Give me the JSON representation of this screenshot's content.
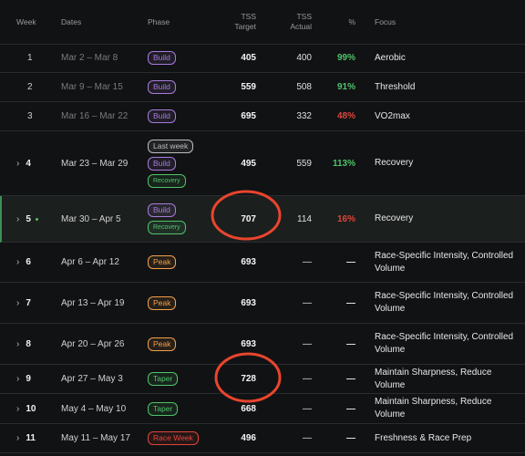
{
  "table": {
    "header": [
      "Week",
      "Dates",
      "Phase",
      "TSS Target",
      "TSS Actual",
      "%",
      "Focus"
    ],
    "rows": [
      {
        "week": "1",
        "dates": "Mar 2 – Mar 8",
        "phases": [
          {
            "label": "Build",
            "color": "#a77bdc"
          }
        ],
        "target": "405",
        "actual": "400",
        "pct": "99%",
        "pct_color": "#4fc36a",
        "focus": "Aerobic",
        "past": true
      },
      {
        "week": "2",
        "dates": "Mar 9 – Mar 15",
        "phases": [
          {
            "label": "Build",
            "color": "#a77bdc"
          }
        ],
        "target": "559",
        "actual": "508",
        "pct": "91%",
        "pct_color": "#4fc36a",
        "focus": "Threshold",
        "past": true
      },
      {
        "week": "3",
        "dates": "Mar 16 – Mar 22",
        "phases": [
          {
            "label": "Build",
            "color": "#a77bdc"
          }
        ],
        "target": "695",
        "actual": "332",
        "pct": "48%",
        "pct_color": "#e0453a",
        "focus": "VO2max",
        "past": true
      },
      {
        "week": "4",
        "dates": "Mar 23 – Mar 29",
        "phases": [
          {
            "label": "Last week",
            "color": "#bdbdbd"
          },
          {
            "label": "Build",
            "color": "#a77bdc"
          },
          {
            "label": "Recovery",
            "color": "#4fc36a"
          }
        ],
        "target": "495",
        "actual": "559",
        "pct": "113%",
        "pct_color": "#4fc36a",
        "focus": "Recovery",
        "expandable": true
      },
      {
        "week": "5",
        "dates": "Mar 30 – Apr 5",
        "phases": [
          {
            "label": "Build",
            "color": "#a77bdc"
          },
          {
            "label": "Recovery",
            "color": "#4fc36a"
          }
        ],
        "target": "707",
        "actual": "114",
        "pct": "16%",
        "pct_color": "#e0453a",
        "focus": "Recovery",
        "expandable": true,
        "current": true
      },
      {
        "week": "6",
        "dates": "Apr 6 – Apr 12",
        "phases": [
          {
            "label": "Peak",
            "color": "#f0a04b"
          }
        ],
        "target": "693",
        "actual": "—",
        "pct": "—",
        "focus": "Race-Specific Intensity, Controlled Volume",
        "expandable": true
      },
      {
        "week": "7",
        "dates": "Apr 13 – Apr 19",
        "phases": [
          {
            "label": "Peak",
            "color": "#f0a04b"
          }
        ],
        "target": "693",
        "actual": "—",
        "pct": "—",
        "focus": "Race-Specific Intensity, Controlled Volume",
        "expandable": true
      },
      {
        "week": "8",
        "dates": "Apr 20 – Apr 26",
        "phases": [
          {
            "label": "Peak",
            "color": "#f0a04b"
          }
        ],
        "target": "693",
        "actual": "—",
        "pct": "—",
        "focus": "Race-Specific Intensity, Controlled Volume",
        "expandable": true
      },
      {
        "week": "9",
        "dates": "Apr 27 – May 3",
        "phases": [
          {
            "label": "Taper",
            "color": "#4fc36a"
          }
        ],
        "target": "728",
        "actual": "—",
        "pct": "—",
        "focus": "Maintain Sharpness, Reduce Volume",
        "expandable": true
      },
      {
        "week": "10",
        "dates": "May 4 – May 10",
        "phases": [
          {
            "label": "Taper",
            "color": "#4fc36a"
          }
        ],
        "target": "668",
        "actual": "—",
        "pct": "—",
        "focus": "Maintain Sharpness, Reduce Volume",
        "expandable": true
      },
      {
        "week": "11",
        "dates": "May 11 – May 17",
        "phases": [
          {
            "label": "Race Week",
            "color": "#e0453a"
          }
        ],
        "target": "496",
        "actual": "—",
        "pct": "—",
        "focus": "Freshness & Race Prep",
        "expandable": true
      }
    ]
  }
}
